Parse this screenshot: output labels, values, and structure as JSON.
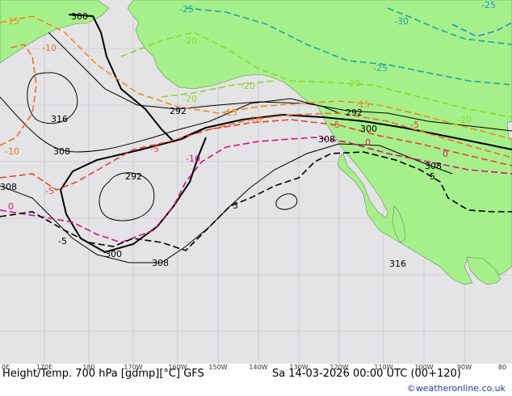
{
  "map": {
    "caption": "Height/Temp. 700 hPa [gdmp][°C] GFS",
    "valid": "Sa 14-03-2026 00:00 UTC (00+120)",
    "credit": "©weatheronline.co.uk",
    "colors": {
      "ocean": "#e4e4e6",
      "land": "#a6f08c",
      "height": "#000000",
      "t_minus25": "#1aa7a7",
      "t_minus20": "#8fd62a",
      "t_minus15": "#f08a1c",
      "t_minus10": "#f06b2a",
      "t_minus5": "#e8412e",
      "t_0": "#d4117a",
      "t_plus5": "#000000",
      "t_minus30": "#1f8fd6"
    },
    "lon_labels": [
      "0E",
      "170E",
      "180",
      "170W",
      "160W",
      "150W",
      "140W",
      "130W",
      "120W",
      "110W",
      "100W",
      "90W",
      "80"
    ],
    "height_labels": [
      "300",
      "316",
      "308",
      "292",
      "308",
      "292",
      "300",
      "308",
      "308",
      "300",
      "308",
      "316",
      "292"
    ],
    "temp_labels": [
      "-25",
      "-20",
      "-30",
      "-25",
      "-20",
      "-20",
      "-20",
      "-15",
      "-15",
      "-15",
      "-10",
      "-10",
      "-10",
      "-5",
      "-5",
      "-5",
      "-5",
      "0",
      "0",
      "0",
      "-5",
      "5",
      "5",
      "-20",
      "-25",
      "-10"
    ]
  }
}
